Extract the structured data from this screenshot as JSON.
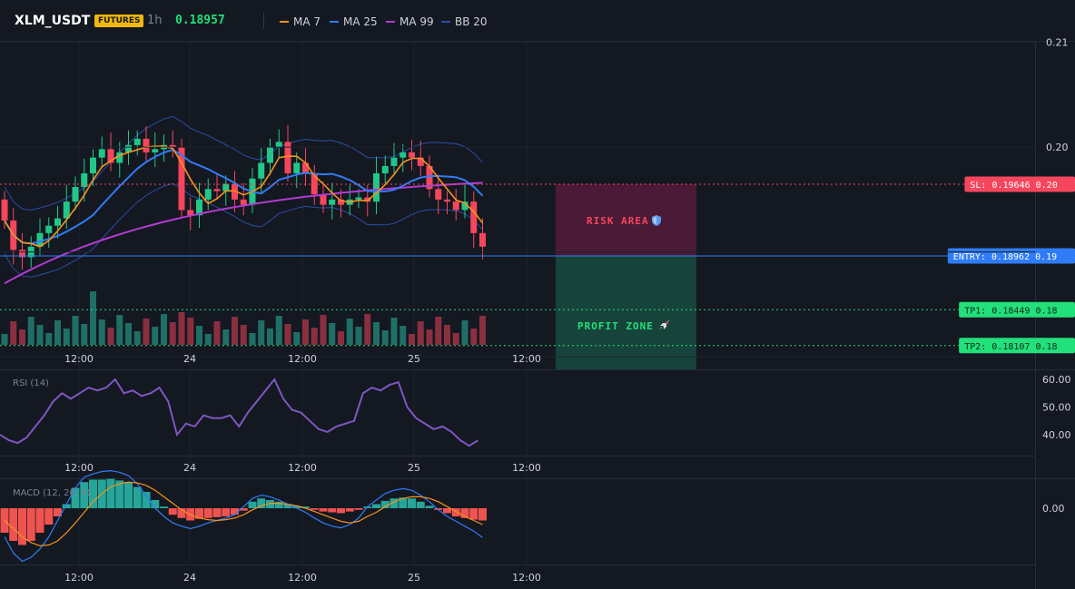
{
  "header": {
    "symbol": "XLM_USDT",
    "badge": "FUTURES",
    "interval": "1h",
    "price": "0.18957",
    "legend": [
      {
        "label": "MA 7",
        "color": "#f7931a"
      },
      {
        "label": "MA 25",
        "color": "#2f7cf6"
      },
      {
        "label": "MA 99",
        "color": "#b13bd1"
      },
      {
        "label": "BB 20",
        "color": "#2b4da8"
      }
    ]
  },
  "colors": {
    "up": "#22c788",
    "down": "#f6465d",
    "vol_up": "#1f6f66",
    "vol_down": "#8a2f40",
    "rsi": "#7e57c2",
    "macd_line": "#2f7cf6",
    "signal_line": "#f7931a",
    "hist_up": "#26a69a",
    "hist_down": "#ef5350",
    "sl": "#f6465d",
    "entry": "#2f7cf6",
    "tp": "#22e07a"
  },
  "price_axis": {
    "ticks": [
      "0.21",
      "0.20",
      "0.19",
      "0.18"
    ]
  },
  "time_axis": {
    "ticks": [
      "12:00",
      "24",
      "12:00",
      "25",
      "12:00"
    ]
  },
  "levels": {
    "sl": {
      "label": "SL: 0.19646",
      "axis": "0.20",
      "value": 0.19646
    },
    "entry": {
      "label": "ENTRY: 0.18962",
      "axis": "0.19",
      "value": 0.18962
    },
    "tp1": {
      "label": "TP1: 0.18449",
      "axis": "0.18",
      "value": 0.18449
    },
    "tp2": {
      "label": "TP2: 0.18107",
      "axis": "0.18",
      "value": 0.18107
    }
  },
  "zones": {
    "risk": {
      "label": "RISK AREA",
      "icon": "shield-icon"
    },
    "profit": {
      "label": "PROFIT ZONE",
      "icon": "rocket-icon"
    }
  },
  "rsi": {
    "label": "RSI (14)",
    "ticks": [
      "60.00",
      "50.00",
      "40.00"
    ],
    "values": [
      40,
      38,
      37,
      39,
      43,
      47,
      52,
      55,
      53,
      55,
      57,
      56,
      57,
      60,
      55,
      56,
      54,
      55,
      57,
      52,
      40,
      44,
      43,
      47,
      46,
      46,
      47,
      43,
      48,
      52,
      56,
      60,
      53,
      49,
      48,
      45,
      42,
      41,
      43,
      44,
      45,
      55,
      57,
      56,
      58,
      59,
      50,
      46,
      44,
      42,
      43,
      41,
      38,
      36,
      38
    ]
  },
  "macd": {
    "label": "MACD (12, 26, 9)",
    "ticks": [
      "0.00"
    ],
    "hist": [
      -3,
      -4,
      -4.5,
      -4,
      -3,
      -2,
      -1,
      0.5,
      2.5,
      3.2,
      3.5,
      3.5,
      3.6,
      3.4,
      3.2,
      2.6,
      2,
      1,
      0.2,
      -0.8,
      -1.2,
      -1.5,
      -1.3,
      -1.2,
      -1.1,
      -1,
      -0.8,
      -0.3,
      0.8,
      1.2,
      1.0,
      0.8,
      0.5,
      0.3,
      0.2,
      -0.2,
      -0.4,
      -0.5,
      -0.6,
      -0.4,
      -0.2,
      0.2,
      0.5,
      0.9,
      1.2,
      1.3,
      1.2,
      0.8,
      0.3,
      -0.2,
      -0.6,
      -1,
      -1.2,
      -1.4,
      -1.5
    ],
    "macd_line": [
      -3.5,
      -5.5,
      -6.5,
      -6,
      -5,
      -3.5,
      -1.5,
      0.5,
      2.5,
      3.8,
      4.2,
      4.5,
      4.6,
      4.4,
      4,
      3,
      1.5,
      0,
      -1,
      -1.8,
      -2.2,
      -2.5,
      -2.2,
      -1.8,
      -1.5,
      -1.2,
      -0.8,
      0.2,
      1.2,
      1.6,
      1.4,
      1,
      0.5,
      0,
      -0.5,
      -1.2,
      -1.8,
      -2.2,
      -2.4,
      -2.0,
      -1.2,
      0.2,
      1,
      1.8,
      2.2,
      2.4,
      2.2,
      1.6,
      0.8,
      -0.2,
      -1,
      -1.6,
      -2.2,
      -2.8,
      -3.6
    ],
    "signal_line": [
      -1.5,
      -2.5,
      -3.5,
      -4.2,
      -4.6,
      -4.5,
      -4,
      -3,
      -1.8,
      -0.5,
      0.8,
      1.8,
      2.6,
      3,
      3.2,
      3.1,
      2.8,
      2.2,
      1.4,
      0.6,
      -0.2,
      -0.8,
      -1.2,
      -1.4,
      -1.5,
      -1.4,
      -1.2,
      -0.8,
      -0.2,
      0.3,
      0.6,
      0.6,
      0.5,
      0.3,
      0,
      -0.4,
      -0.8,
      -1.2,
      -1.6,
      -1.8,
      -1.6,
      -1.0,
      -0.5,
      0.2,
      0.8,
      1.2,
      1.4,
      1.4,
      1.2,
      0.8,
      0.2,
      -0.4,
      -1,
      -1.5,
      -2
    ]
  }
}
